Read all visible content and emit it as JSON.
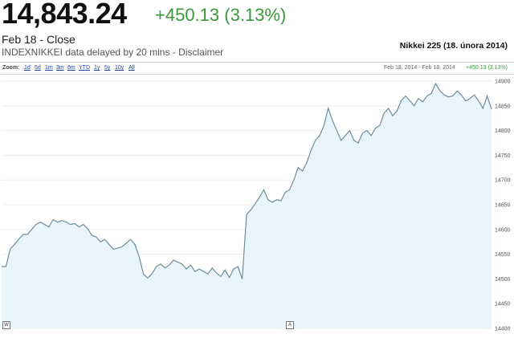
{
  "quote": {
    "price": "14,843.24",
    "change": "+450.13 (3.13%)",
    "close_label": "Feb 18 - Close",
    "index_name": "INDEXNIKKEI",
    "delay_text": "data delayed by 20 mins",
    "separator": "-",
    "disclaimer": "Disclaimer"
  },
  "chart_header": {
    "title": "Nikkei 225 (18. února 2014)"
  },
  "toolbar": {
    "zoom_label": "Zoom:",
    "zoom_options": [
      "1d",
      "5d",
      "1m",
      "3m",
      "6m",
      "YTD",
      "1y",
      "5y",
      "10y",
      "All"
    ],
    "range_text": "Feb 18, 2014 - Feb 18, 2014",
    "range_change": "+450.13 (3.13%)"
  },
  "markers": [
    "W",
    "A"
  ],
  "colors": {
    "line": "#6e8e9c",
    "fill": "#e9f5fc",
    "positive": "#3a9a3a"
  },
  "chart_data": {
    "type": "area",
    "title": "Nikkei 225 (18. února 2014)",
    "x_unit": "intraday sample index (Feb 18, 2014)",
    "ylim": [
      14400,
      14900
    ],
    "y_ticks": [
      14400,
      14450,
      14500,
      14550,
      14600,
      14650,
      14700,
      14750,
      14800,
      14850,
      14900
    ],
    "grid": true,
    "values": [
      14525,
      14525,
      14560,
      14570,
      14580,
      14590,
      14590,
      14600,
      14610,
      14615,
      14610,
      14605,
      14620,
      14615,
      14618,
      14615,
      14610,
      14612,
      14605,
      14610,
      14602,
      14588,
      14585,
      14575,
      14580,
      14570,
      14560,
      14562,
      14565,
      14572,
      14580,
      14570,
      14545,
      14510,
      14502,
      14510,
      14525,
      14530,
      14522,
      14528,
      14538,
      14534,
      14530,
      14520,
      14528,
      14515,
      14520,
      14515,
      14510,
      14522,
      14512,
      14505,
      14518,
      14503,
      14520,
      14525,
      14500,
      14630,
      14640,
      14652,
      14665,
      14680,
      14660,
      14655,
      14660,
      14658,
      14675,
      14680,
      14700,
      14725,
      14718,
      14735,
      14760,
      14780,
      14790,
      14810,
      14845,
      14820,
      14800,
      14780,
      14790,
      14800,
      14780,
      14775,
      14795,
      14800,
      14790,
      14805,
      14810,
      14835,
      14845,
      14830,
      14840,
      14860,
      14870,
      14860,
      14850,
      14865,
      14858,
      14870,
      14875,
      14895,
      14880,
      14872,
      14868,
      14870,
      14880,
      14872,
      14860,
      14865,
      14872,
      14860,
      14845,
      14870,
      14843
    ]
  }
}
